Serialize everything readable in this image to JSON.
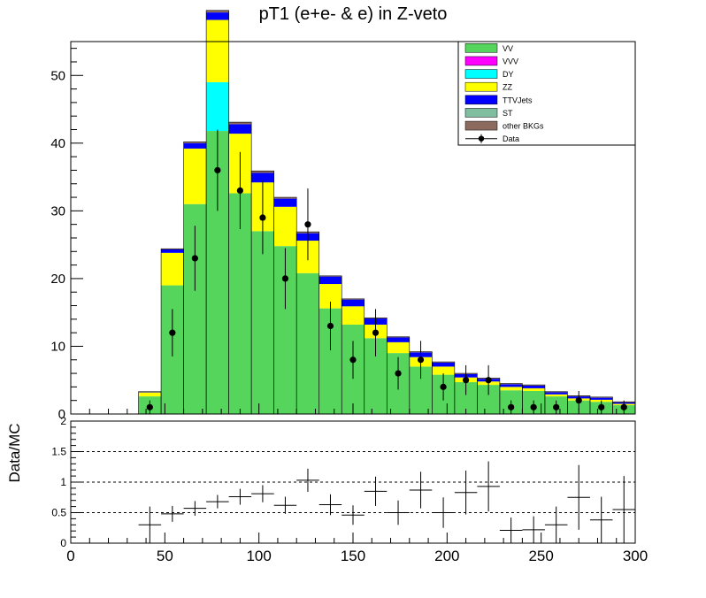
{
  "chart_data": [
    {
      "type": "bar",
      "stacked": true,
      "title": "pT1 (e+e- & e) in Z-veto",
      "xlabel": "",
      "ylabel": "",
      "xlim": [
        0,
        300
      ],
      "ylim": [
        0,
        55
      ],
      "yticks": [
        0,
        10,
        20,
        30,
        40,
        50
      ],
      "bin_width": 12,
      "bin_lows": [
        0,
        12,
        24,
        36,
        48,
        60,
        72,
        84,
        96,
        108,
        120,
        132,
        144,
        156,
        168,
        180,
        192,
        204,
        216,
        228,
        240,
        252,
        264,
        276,
        288
      ],
      "series": [
        {
          "name": "VV",
          "color": "#55d55b",
          "values": [
            0,
            0,
            0,
            2.6,
            19.0,
            31.0,
            41.8,
            32.6,
            27.0,
            24.8,
            20.8,
            15.6,
            13.2,
            11.2,
            9.0,
            7.0,
            5.8,
            4.7,
            4.3,
            3.5,
            3.4,
            2.6,
            2.0,
            1.8,
            1.3
          ]
        },
        {
          "name": "VVV",
          "color": "#ff00ff",
          "values": [
            0,
            0,
            0,
            0,
            0,
            0,
            0,
            0,
            0,
            0,
            0,
            0,
            0,
            0,
            0,
            0,
            0,
            0,
            0,
            0,
            0,
            0,
            0,
            0,
            0
          ]
        },
        {
          "name": "DY",
          "color": "#00ffff",
          "values": [
            0,
            0,
            0,
            0,
            0,
            0,
            7.2,
            0,
            0,
            0,
            0,
            0,
            0,
            0,
            0,
            0,
            0,
            0,
            0,
            0,
            0,
            0,
            0,
            0,
            0
          ]
        },
        {
          "name": "ZZ",
          "color": "#ffff00",
          "values": [
            0,
            0,
            0,
            0.6,
            4.8,
            8.2,
            9.2,
            8.8,
            7.2,
            5.8,
            4.8,
            3.6,
            2.7,
            2.0,
            1.6,
            1.4,
            1.2,
            0.7,
            0.5,
            0.5,
            0.4,
            0.3,
            0.3,
            0.3,
            0.2
          ]
        },
        {
          "name": "TTVJets",
          "color": "#0000ff",
          "values": [
            0,
            0,
            0,
            0.1,
            0.5,
            0.8,
            1.1,
            1.4,
            1.4,
            1.2,
            1.1,
            1.1,
            1.0,
            0.9,
            0.7,
            0.7,
            0.6,
            0.5,
            0.4,
            0.4,
            0.4,
            0.3,
            0.3,
            0.3,
            0.2
          ]
        },
        {
          "name": "ST",
          "color": "#7fbfa0",
          "values": [
            0,
            0,
            0,
            0,
            0,
            0,
            0,
            0,
            0,
            0,
            0,
            0,
            0,
            0,
            0,
            0,
            0,
            0,
            0,
            0,
            0,
            0,
            0,
            0,
            0
          ]
        },
        {
          "name": "other BKGs",
          "color": "#8c6a5e",
          "values": [
            0,
            0,
            0,
            0,
            0.1,
            0.2,
            0.3,
            0.3,
            0.3,
            0.2,
            0.2,
            0.1,
            0.1,
            0.1,
            0.1,
            0.1,
            0.1,
            0.1,
            0.1,
            0.1,
            0.1,
            0.1,
            0.1,
            0.1,
            0.1
          ]
        }
      ],
      "data_points": {
        "name": "Data",
        "x": [
          42,
          54,
          66,
          78,
          90,
          102,
          114,
          126,
          138,
          150,
          162,
          174,
          186,
          198,
          210,
          222,
          234,
          246,
          258,
          270,
          282,
          294
        ],
        "y": [
          1,
          12,
          23,
          36,
          33,
          29,
          20,
          28,
          13,
          8,
          12,
          6,
          8,
          4,
          5,
          5,
          1,
          1,
          1,
          2,
          1,
          1
        ],
        "yerr": [
          1.0,
          3.5,
          4.8,
          6.0,
          5.7,
          5.4,
          4.5,
          5.3,
          3.6,
          2.8,
          3.5,
          2.4,
          2.8,
          2.0,
          2.2,
          2.2,
          1.0,
          1.0,
          1.0,
          1.4,
          1.0,
          1.0
        ]
      },
      "legend_position": "top-right"
    },
    {
      "type": "scatter",
      "title": "",
      "xlabel": "",
      "ylabel": "Data/MC",
      "xlim": [
        0,
        300
      ],
      "ylim": [
        0,
        2
      ],
      "xticks": [
        0,
        50,
        100,
        150,
        200,
        250,
        300
      ],
      "yticks": [
        0,
        0.5,
        1,
        1.5,
        2
      ],
      "ytick_labels": [
        "0",
        "0.5",
        "1",
        "1.5",
        "2"
      ],
      "xtick_labels": [
        "0",
        "50",
        "100",
        "150",
        "200",
        "250",
        "300"
      ],
      "reference_lines": [
        0.5,
        1,
        1.5
      ],
      "x": [
        42,
        54,
        66,
        78,
        90,
        102,
        114,
        126,
        138,
        150,
        162,
        174,
        186,
        198,
        210,
        222,
        234,
        246,
        258,
        270,
        282,
        294
      ],
      "y": [
        0.3,
        0.48,
        0.57,
        0.68,
        0.76,
        0.81,
        0.62,
        1.03,
        0.63,
        0.46,
        0.85,
        0.5,
        0.87,
        0.5,
        0.83,
        0.93,
        0.21,
        0.22,
        0.3,
        0.75,
        0.38,
        0.55
      ],
      "yerr": [
        0.3,
        0.13,
        0.12,
        0.11,
        0.13,
        0.14,
        0.14,
        0.19,
        0.17,
        0.16,
        0.24,
        0.2,
        0.3,
        0.25,
        0.36,
        0.41,
        0.21,
        0.22,
        0.3,
        0.53,
        0.38,
        0.55
      ],
      "xerr": 6
    }
  ]
}
